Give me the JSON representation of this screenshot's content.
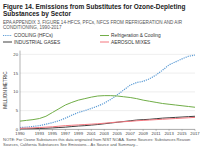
{
  "chart_data": {
    "type": "line",
    "title": "Figure 14. Emissions from Substitutes for Ozone-Depleting Substances by Sector",
    "subtitle": "EPA APPENDIX 3, FIGURE 14-HFCS, PFCs, NFCS FROM REFRIGERATION AND AIR CONDITIONING, 1990-2017",
    "annotations": [
      "NOTE: For Ozone Substances this data originated from NIST NOAA. Some Sources: Substances Reason Sources, California Substances See Emissions... As Source and Summary..."
    ],
    "y_label": "MILLION METRIC",
    "x": [
      1990,
      1991,
      1992,
      1993,
      1994,
      1995,
      1996,
      1997,
      1998,
      1999,
      2000,
      2001,
      2002,
      2003,
      2004,
      2005,
      2006,
      2007,
      2008,
      2009,
      2010,
      2011,
      2012,
      2013,
      2014,
      2015,
      2016,
      2017
    ],
    "series": [
      {
        "name": "COOLING (HFCs)",
        "color": "#5b9bd5",
        "line_style": "dotted",
        "values": [
          0.5,
          0.6,
          0.8,
          1.0,
          1.4,
          1.8,
          2.3,
          3.0,
          3.8,
          4.5,
          5.0,
          5.6,
          6.2,
          7.0,
          8.0,
          9.2,
          10.5,
          11.8,
          12.5,
          12.8,
          13.5,
          14.5,
          15.8,
          17.2,
          18.0,
          18.8,
          19.5,
          19.8
        ]
      },
      {
        "name": "Refrigeration & Cooling",
        "color": "#70ad47",
        "line_style": "solid",
        "values": [
          2.2,
          2.4,
          2.6,
          2.9,
          3.5,
          4.5,
          5.5,
          6.5,
          7.2,
          7.8,
          8.2,
          8.6,
          8.9,
          9.0,
          9.0,
          8.9,
          8.7,
          8.5,
          8.2,
          7.8,
          7.5,
          7.2,
          6.9,
          6.7,
          6.5,
          6.3,
          6.1,
          5.9
        ]
      },
      {
        "name": "INDUSTRIAL GASES",
        "color": "#404040",
        "line_style": "solid",
        "values": [
          0.1,
          0.15,
          0.2,
          0.25,
          0.3,
          0.4,
          0.5,
          0.6,
          0.75,
          0.9,
          1.0,
          1.15,
          1.3,
          1.5,
          1.7,
          1.9,
          2.1,
          2.3,
          2.5,
          2.6,
          2.7,
          2.85,
          3.0,
          3.1,
          3.2,
          3.3,
          3.4,
          3.5
        ]
      },
      {
        "name": "AEROSOL MIXES",
        "color": "#f4777f",
        "line_style": "solid",
        "values": [
          0.3,
          0.35,
          0.4,
          0.5,
          0.6,
          0.7,
          0.85,
          1.0,
          1.1,
          1.2,
          1.3,
          1.4,
          1.5,
          1.65,
          1.8,
          1.95,
          2.05,
          2.15,
          2.3,
          2.4,
          2.5,
          2.6,
          2.7,
          2.8,
          2.9,
          3.0,
          3.1,
          3.2
        ]
      }
    ],
    "xlim": [
      1990,
      2017
    ],
    "ylim": [
      0,
      21
    ],
    "yticks": [
      0,
      5,
      10,
      15,
      20
    ],
    "xticks": [
      1990,
      1993,
      1995,
      1997,
      1999,
      2001,
      2003,
      2005,
      2007,
      2009,
      2011,
      2013,
      2015,
      2017
    ],
    "grid": true,
    "legend": "top"
  }
}
